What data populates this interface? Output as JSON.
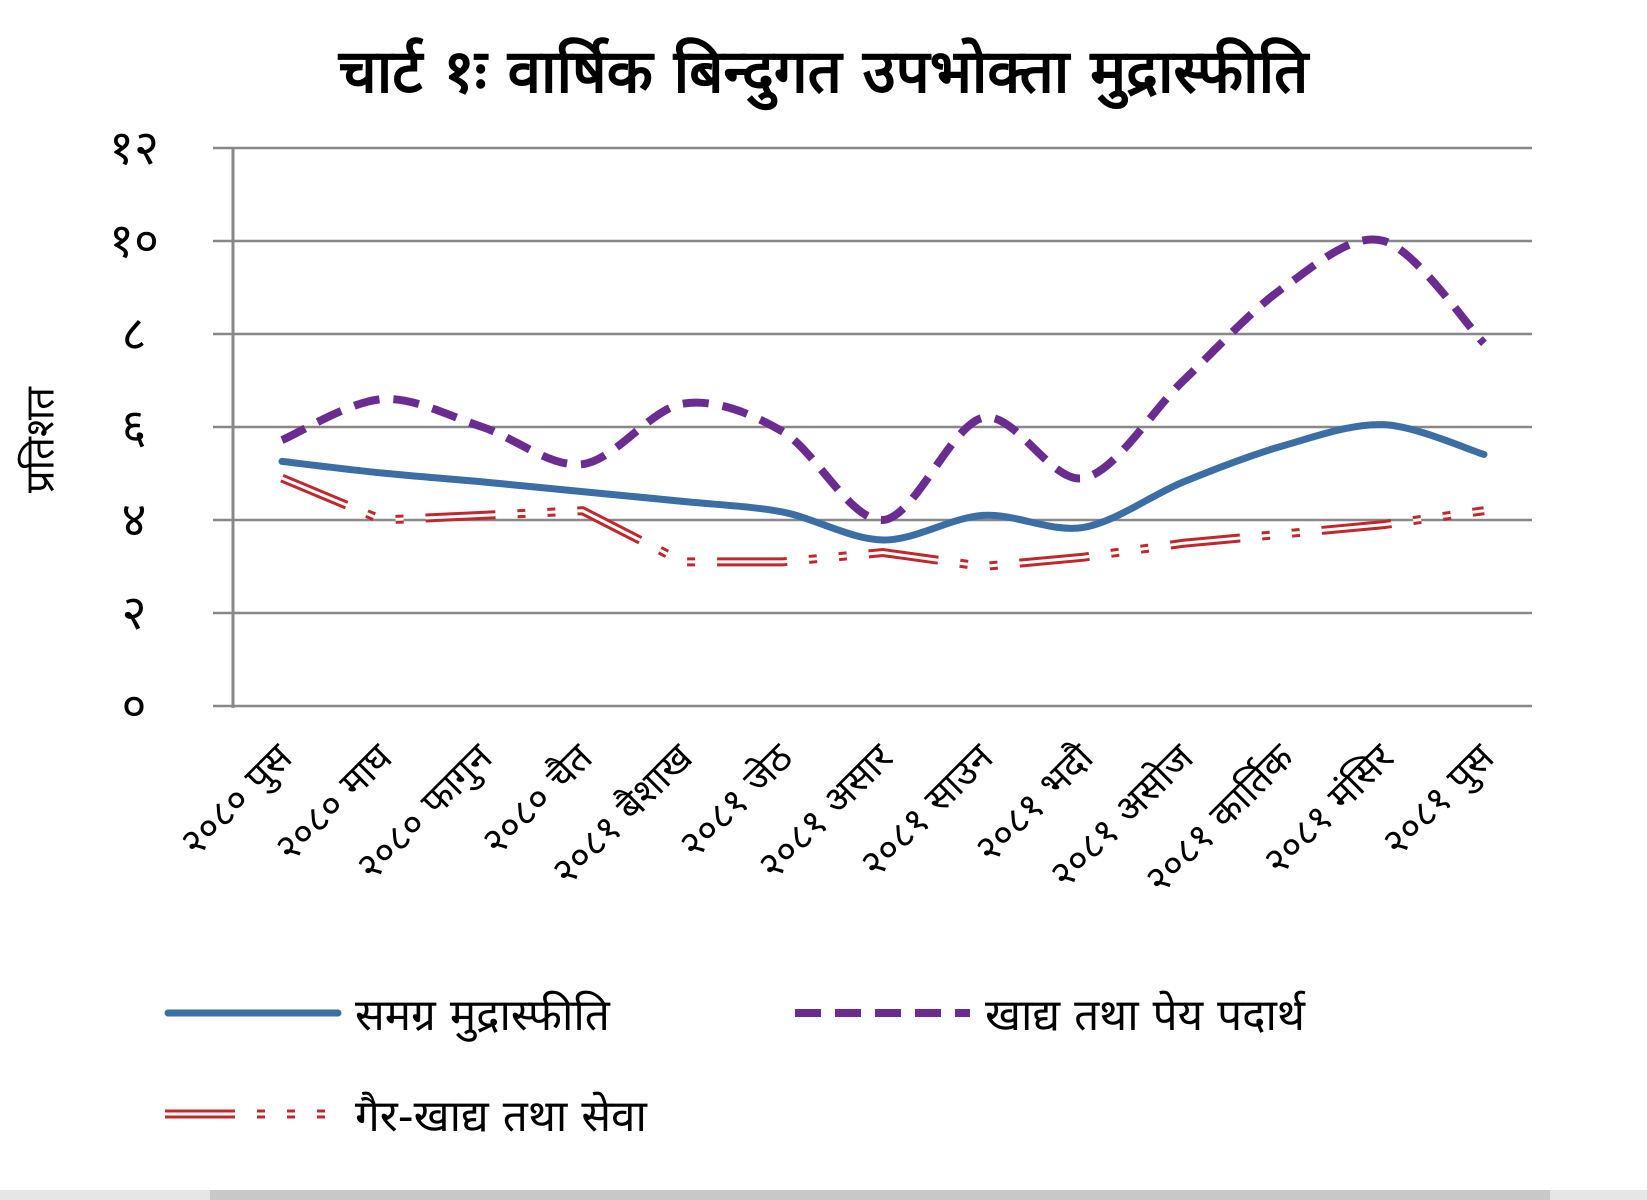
{
  "chart_data": {
    "type": "line",
    "title": "चार्ट १ः वार्षिक बिन्दुगत उपभोक्ता मुद्रास्फीति",
    "ylabel": "प्रतिशत",
    "xlabel": "",
    "ylim": [
      0,
      12
    ],
    "yticks": [
      0,
      2,
      4,
      6,
      8,
      10,
      12
    ],
    "ytick_labels": [
      "०",
      "२",
      "४",
      "६",
      "८",
      "१०",
      "१२"
    ],
    "grid": true,
    "legend_position": "bottom",
    "categories": [
      "२०८० पुस",
      "२०८० माघ",
      "२०८० फागुन",
      "२०८० चैत",
      "२०८१ बैशाख",
      "२०८१ जेठ",
      "२०८१ असार",
      "२०८१ साउन",
      "२०८१ भदौ",
      "२०८१ असोज",
      "२०८१ कार्तिक",
      "२०८१ मंसिर",
      "२०८१ पुस"
    ],
    "series": [
      {
        "name": "समग्र मुद्रास्फीति",
        "color": "#3a6ea5",
        "style": "solid",
        "values": [
          5.26,
          5.01,
          4.82,
          4.61,
          4.4,
          4.17,
          3.57,
          4.1,
          3.84,
          4.82,
          5.6,
          6.05,
          5.41
        ]
      },
      {
        "name": "खाद्य तथा पेय पदार्थ",
        "color": "#6a2c91",
        "style": "dashed",
        "values": [
          5.72,
          6.6,
          6.0,
          5.2,
          6.5,
          5.9,
          4.0,
          6.2,
          4.9,
          7.0,
          9.0,
          10.0,
          7.8
        ]
      },
      {
        "name": "गैर-खाद्य तथा सेवा",
        "color": "#c0282d",
        "style": "double",
        "values": [
          4.9,
          4.0,
          4.1,
          4.2,
          3.1,
          3.1,
          3.3,
          3.0,
          3.2,
          3.5,
          3.7,
          3.9,
          4.2
        ]
      }
    ]
  }
}
